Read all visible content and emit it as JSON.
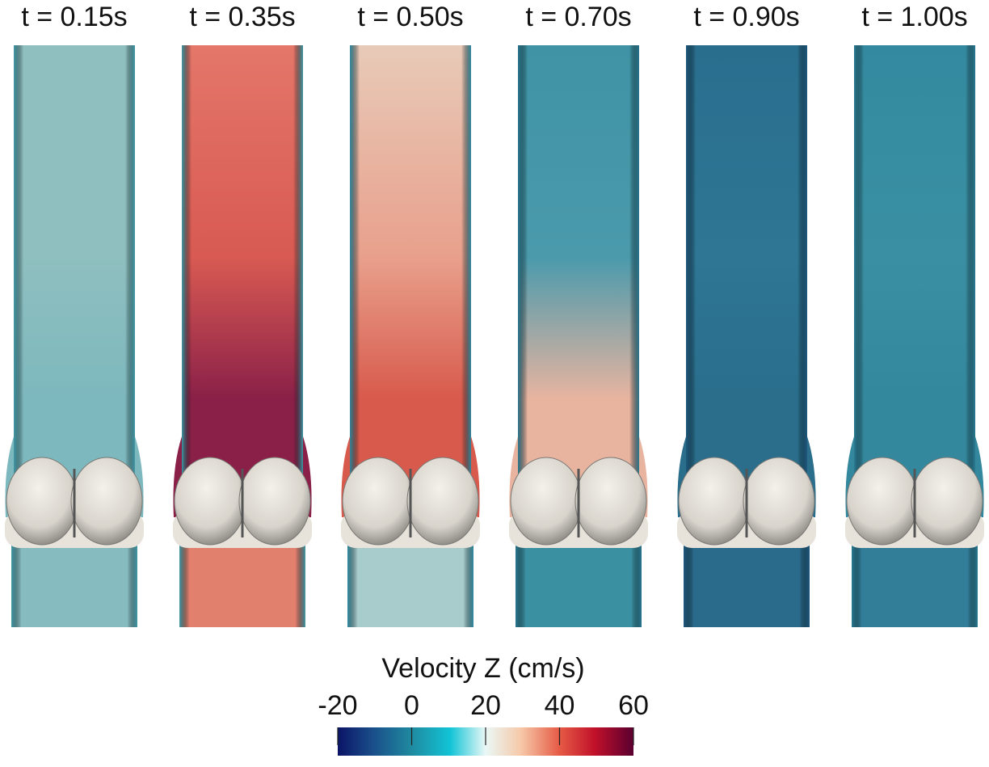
{
  "panels": [
    {
      "label": "t = 0.15s"
    },
    {
      "label": "t = 0.35s"
    },
    {
      "label": "t = 0.50s"
    },
    {
      "label": "t = 0.70s"
    },
    {
      "label": "t = 0.90s"
    },
    {
      "label": "t = 1.00s"
    }
  ],
  "colorbar": {
    "title": "Velocity Z (cm/s)",
    "lim": [
      -20,
      60
    ],
    "ticks": [
      -20,
      0,
      20,
      40,
      60
    ]
  }
}
